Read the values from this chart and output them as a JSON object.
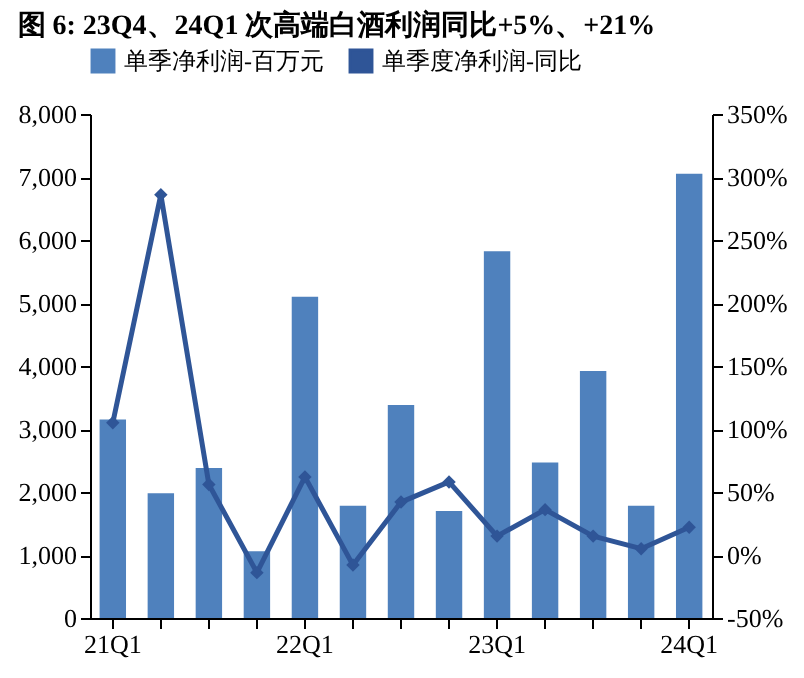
{
  "chart_data": {
    "type": "bar",
    "title": "图 6: 23Q4、24Q1 次高端白酒利润同比+5%、+21%",
    "categories": [
      "21Q1",
      null,
      null,
      null,
      "22Q1",
      null,
      null,
      null,
      "23Q1",
      null,
      null,
      null,
      "24Q1"
    ],
    "series": [
      {
        "name": "单季净利润-百万元",
        "color": "#4f81bd",
        "values": [
          3150,
          1980,
          2380,
          1060,
          5100,
          1780,
          3380,
          1700,
          5820,
          2470,
          3920,
          1780,
          7050
        ]
      },
      {
        "name": "单季度净利润-同比",
        "type": "line",
        "axis": "y2",
        "color": "#2f5597",
        "marker": "diamond",
        "line_style": "solid",
        "values": [
          105,
          286,
          56,
          -14,
          62,
          -8,
          42,
          58,
          15,
          36,
          15,
          5,
          22
        ]
      }
    ],
    "ylim": [
      0,
      8000
    ],
    "yticks": [
      0,
      {
        "value": 1000,
        "label": "1,000"
      },
      {
        "value": 2000,
        "label": "2,000"
      },
      {
        "value": 3000,
        "label": "3,000"
      },
      {
        "value": 4000,
        "label": "4,000"
      },
      {
        "value": 5000,
        "label": "5,000"
      },
      {
        "value": 6000,
        "label": "6,000"
      },
      {
        "value": 7000,
        "label": "7,000"
      },
      {
        "value": 8000,
        "label": "8,000"
      }
    ],
    "y2lim": [
      -50,
      350
    ],
    "y2ticks": [
      {
        "value": -50,
        "label": "-50%"
      },
      {
        "value": 0,
        "label": "0%"
      },
      {
        "value": 50,
        "label": "50%"
      },
      {
        "value": 100,
        "label": "100%"
      },
      {
        "value": 150,
        "label": "150%"
      },
      {
        "value": 200,
        "label": "200%"
      },
      {
        "value": 250,
        "label": "250%"
      },
      {
        "value": 300,
        "label": "300%"
      },
      {
        "value": 350,
        "label": "350%"
      }
    ],
    "grid": false,
    "legend": "top"
  }
}
